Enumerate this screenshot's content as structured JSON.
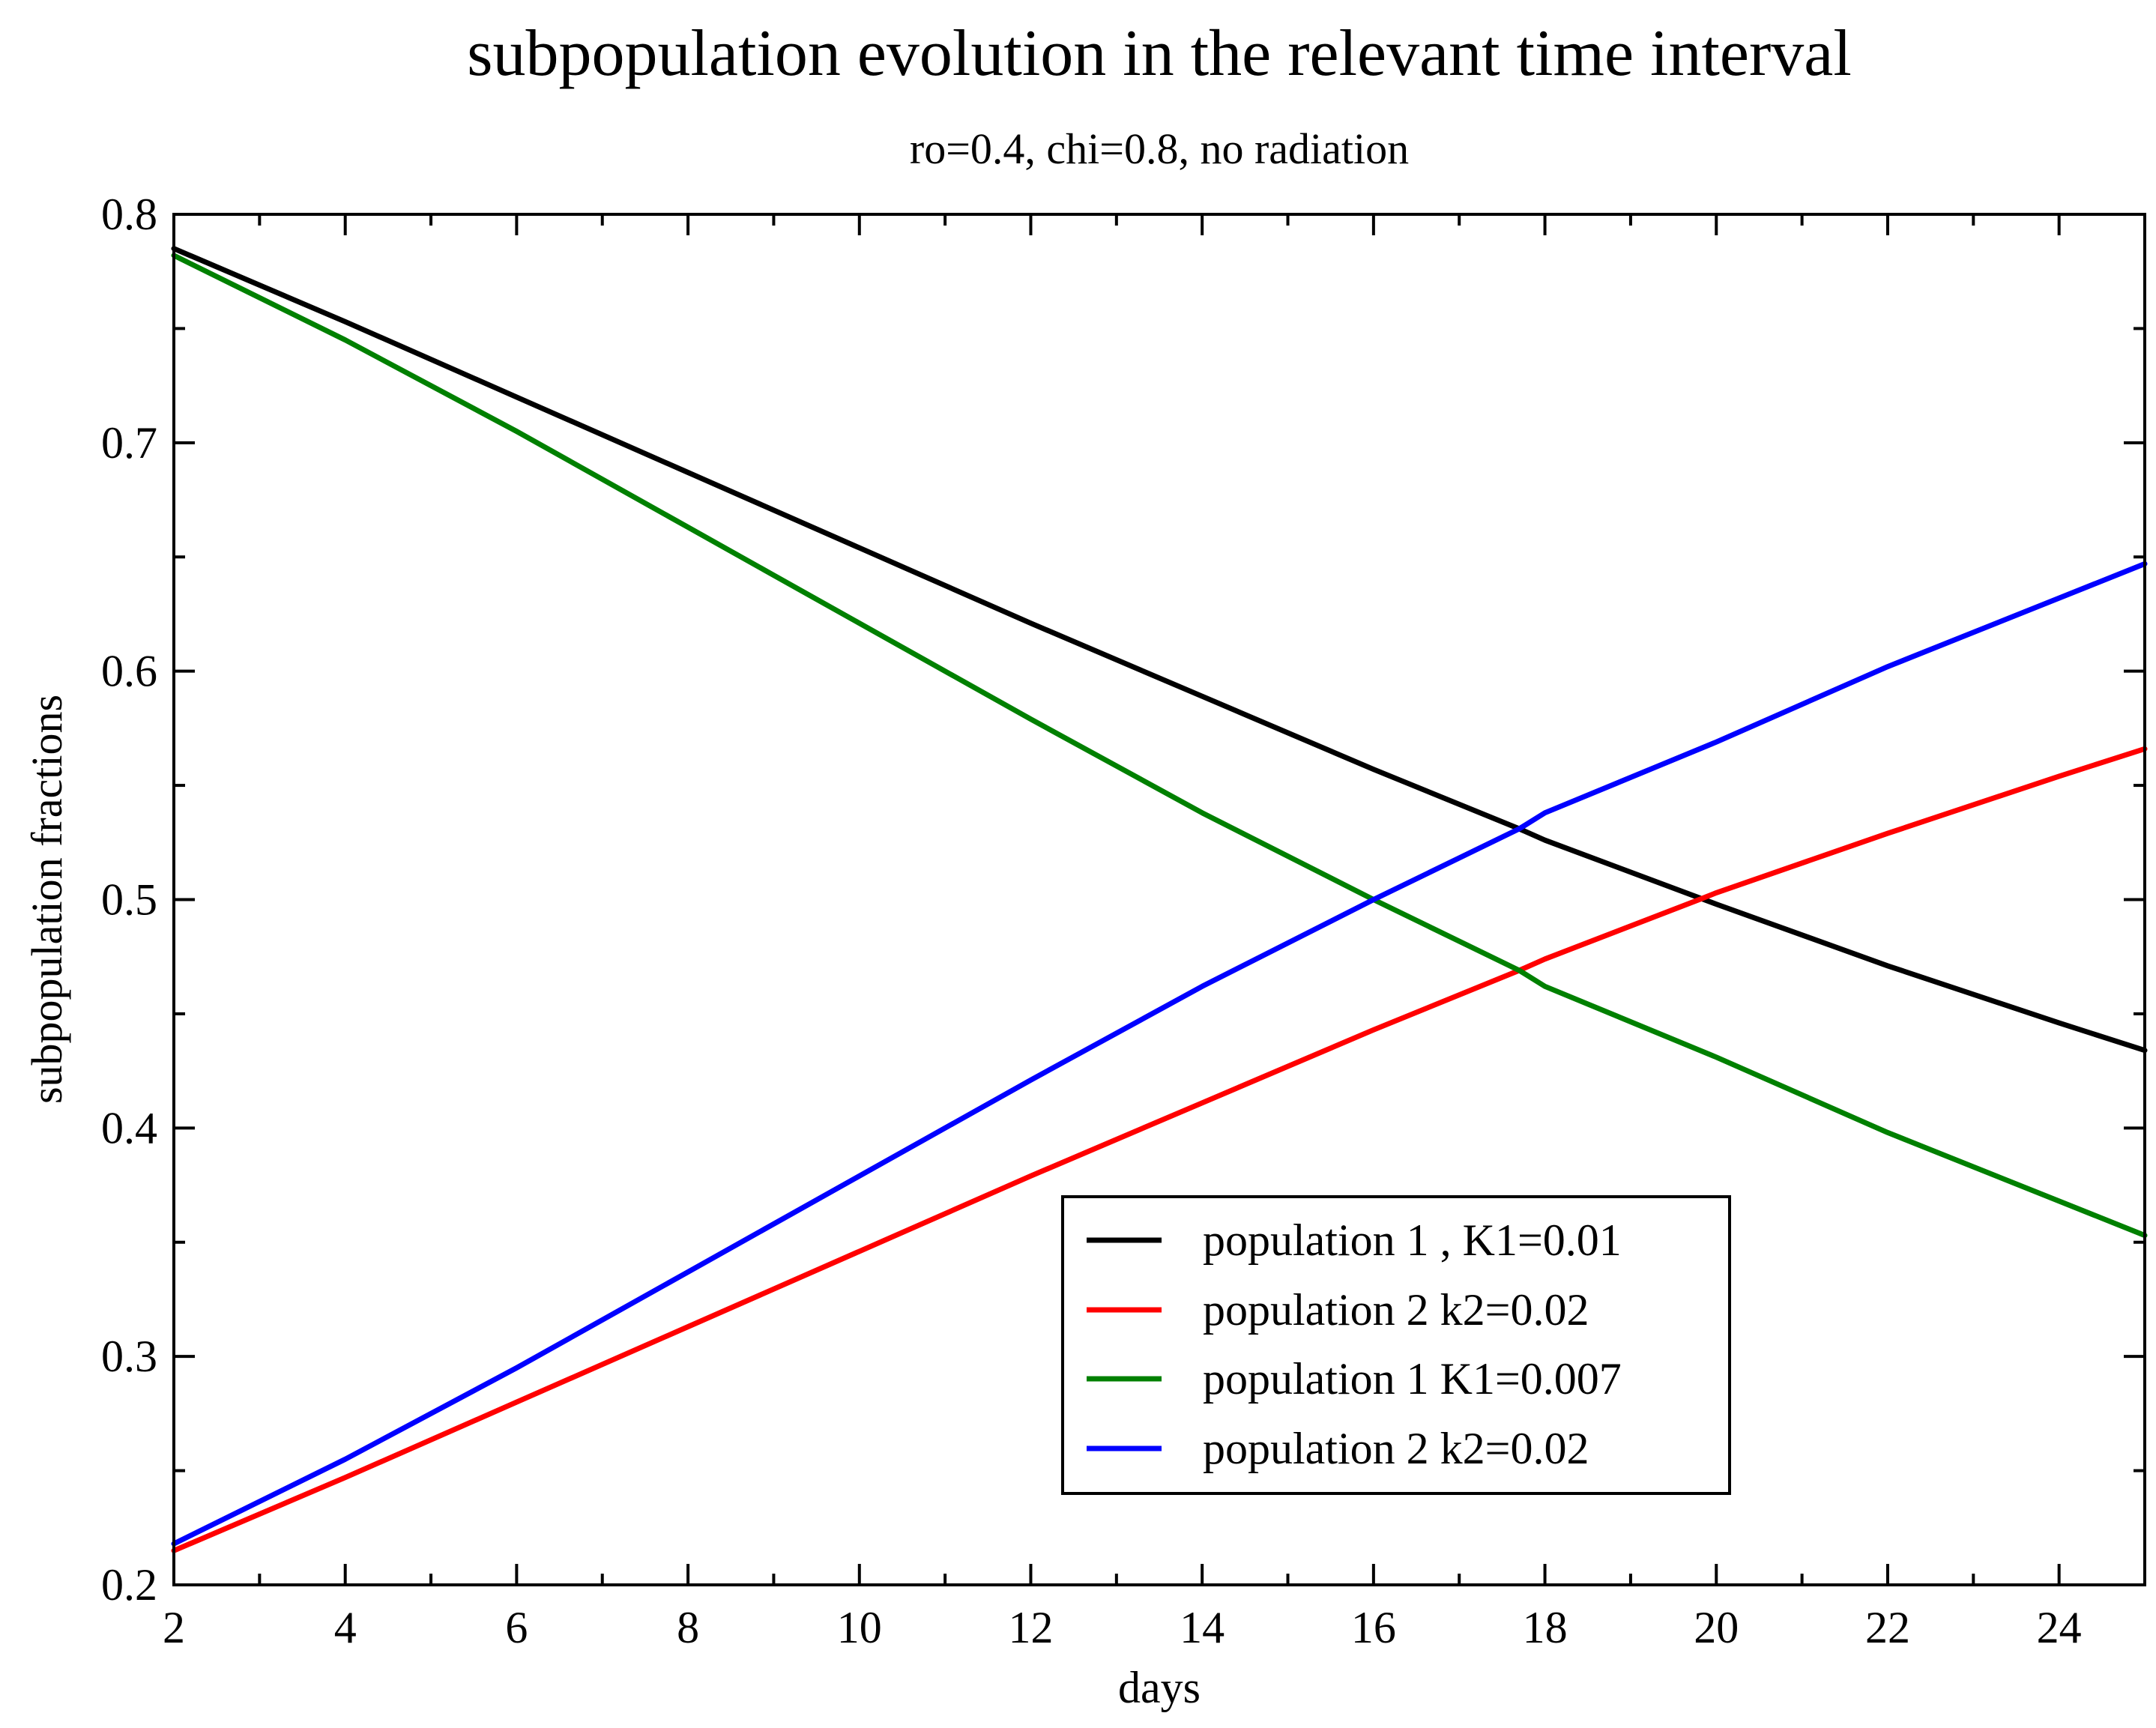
{
  "chart_data": {
    "type": "line",
    "title": "subpopulation evolution in the relevant time interval",
    "subtitle": "ro=0.4, chi=0.8, no radiation",
    "xlabel": "days",
    "ylabel": "subpopulation fractions",
    "xlim": [
      2,
      25
    ],
    "ylim": [
      0.2,
      0.8
    ],
    "x_major_ticks": [
      2,
      4,
      6,
      8,
      10,
      12,
      14,
      16,
      18,
      20,
      22,
      24
    ],
    "x_tick_labels": [
      "2",
      "4",
      "6",
      "8",
      "10",
      "12",
      "14",
      "16",
      "18",
      "20",
      "22",
      "24"
    ],
    "x_minor_step": 1,
    "y_major_ticks": [
      0.2,
      0.3,
      0.4,
      0.5,
      0.6,
      0.7,
      0.8
    ],
    "y_tick_labels": [
      "0.2",
      "0.3",
      "0.4",
      "0.5",
      "0.6",
      "0.7",
      "0.8"
    ],
    "y_minor_step": 0.05,
    "grid": false,
    "legend_position": "lower-center-right",
    "series": [
      {
        "name": "population 1 , K1=0.01",
        "color": "#000000",
        "x": [
          2,
          4,
          6,
          8,
          10,
          12,
          14,
          16,
          17.7,
          18,
          20,
          22,
          24,
          25
        ],
        "y": [
          0.785,
          0.753,
          0.72,
          0.687,
          0.654,
          0.621,
          0.589,
          0.557,
          0.531,
          0.526,
          0.498,
          0.471,
          0.446,
          0.434
        ]
      },
      {
        "name": "population 2 k2=0.02",
        "color": "#ff0000",
        "x": [
          2,
          4,
          6,
          8,
          10,
          12,
          14,
          16,
          17.7,
          18,
          19.8,
          20,
          22,
          24,
          25
        ],
        "y": [
          0.215,
          0.247,
          0.28,
          0.313,
          0.346,
          0.379,
          0.411,
          0.443,
          0.469,
          0.474,
          0.5,
          0.503,
          0.529,
          0.554,
          0.566
        ]
      },
      {
        "name": "population 1 K1=0.007",
        "color": "#008000",
        "x": [
          2,
          4,
          6,
          8,
          10,
          12,
          14,
          16,
          17.7,
          18,
          20,
          22,
          24,
          25
        ],
        "y": [
          0.782,
          0.745,
          0.705,
          0.663,
          0.621,
          0.579,
          0.538,
          0.5,
          0.469,
          0.462,
          0.431,
          0.398,
          0.368,
          0.353
        ]
      },
      {
        "name": "population 2 k2=0.02",
        "color": "#0000ff",
        "x": [
          2,
          4,
          6,
          8,
          10,
          12,
          14,
          16,
          17.7,
          18,
          20,
          22,
          24,
          25
        ],
        "y": [
          0.218,
          0.255,
          0.295,
          0.337,
          0.379,
          0.421,
          0.462,
          0.5,
          0.531,
          0.538,
          0.569,
          0.602,
          0.632,
          0.647
        ]
      }
    ]
  }
}
